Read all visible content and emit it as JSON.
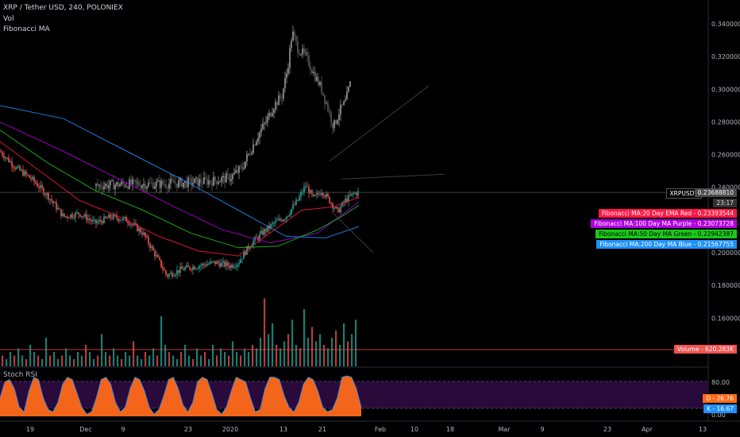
{
  "header": {
    "symbol_line": "XRP / Tether USD, 240, POLONIEX",
    "indicator_vol": "Vol",
    "indicator_fib": "Fibonacci MA",
    "indicator_stoch": "Stoch RSI"
  },
  "price_axis": {
    "ticks": [
      "0.34000000",
      "0.32000000",
      "0.30000000",
      "0.28000000",
      "0.26000000",
      "0.24000000",
      "0.20000000",
      "0.18000000",
      "0.16000000"
    ]
  },
  "stoch_axis": {
    "ticks": [
      "80.00",
      "0.00"
    ]
  },
  "time_axis": {
    "ticks": [
      "19",
      "Dec",
      "9",
      "23",
      "2020",
      "13",
      "21",
      "Feb",
      "10",
      "18",
      "Mar",
      "9",
      "23",
      "Apr",
      "13"
    ]
  },
  "tags": {
    "symbol": "XRPUSDT",
    "last_price": "0.23688810",
    "countdown": "23:17",
    "ma20": "Fibonacci MA:20 Day EMA Red - 0.23393544",
    "ma100": "Fibonacci MA:100 Day MA Purple - 0.23073728",
    "ma50": "Fibonacci MA:50 Day MA Green - 0.22942387",
    "ma200": "Fibonacci MA:200 Day MA Blue - 0.21567755",
    "volume": "Volume - 620.283K",
    "stoch_d": "D - 26.76",
    "stoch_k": "K - 16.67"
  },
  "colors": {
    "background": "#000000",
    "up": "#26a69a",
    "down": "#ef5350",
    "ema20": "#ff1744",
    "ma100": "#b000e0",
    "ma50": "#19c819",
    "ma200": "#1e90ff",
    "stoch_fill": "#ff6a1a",
    "stoch_band": "#2a0a3a",
    "last_price_tag": "#4a4a4a"
  },
  "chart_data": {
    "type": "candlestick",
    "symbol": "XRP / Tether USD",
    "interval": "240",
    "exchange": "POLONIEX",
    "price_range": [
      0.14,
      0.35
    ],
    "stoch_range": [
      0,
      100
    ],
    "main_path": [
      [
        0,
        0.262
      ],
      [
        20,
        0.252
      ],
      [
        40,
        0.245
      ],
      [
        60,
        0.235
      ],
      [
        80,
        0.222
      ],
      [
        100,
        0.224
      ],
      [
        120,
        0.218
      ],
      [
        140,
        0.222
      ],
      [
        160,
        0.22
      ],
      [
        180,
        0.212
      ],
      [
        200,
        0.195
      ],
      [
        210,
        0.186
      ],
      [
        230,
        0.19
      ],
      [
        250,
        0.192
      ],
      [
        270,
        0.194
      ],
      [
        290,
        0.192
      ],
      [
        300,
        0.194
      ],
      [
        315,
        0.205
      ],
      [
        330,
        0.212
      ],
      [
        345,
        0.218
      ],
      [
        360,
        0.222
      ],
      [
        375,
        0.232
      ],
      [
        385,
        0.241
      ],
      [
        395,
        0.233
      ],
      [
        405,
        0.238
      ],
      [
        415,
        0.232
      ],
      [
        425,
        0.225
      ],
      [
        435,
        0.232
      ],
      [
        445,
        0.236
      ],
      [
        452,
        0.237
      ]
    ],
    "overlay_path": [
      [
        120,
        0.241
      ],
      [
        160,
        0.242
      ],
      [
        200,
        0.242
      ],
      [
        240,
        0.243
      ],
      [
        270,
        0.244
      ],
      [
        290,
        0.246
      ],
      [
        305,
        0.252
      ],
      [
        315,
        0.262
      ],
      [
        325,
        0.272
      ],
      [
        335,
        0.28
      ],
      [
        345,
        0.29
      ],
      [
        355,
        0.296
      ],
      [
        362,
        0.312
      ],
      [
        368,
        0.335
      ],
      [
        375,
        0.325
      ],
      [
        385,
        0.32
      ],
      [
        395,
        0.31
      ],
      [
        405,
        0.3
      ],
      [
        412,
        0.29
      ],
      [
        420,
        0.277
      ],
      [
        428,
        0.287
      ],
      [
        435,
        0.292
      ],
      [
        442,
        0.305
      ]
    ],
    "ema20": [
      [
        0,
        0.268
      ],
      [
        50,
        0.25
      ],
      [
        100,
        0.232
      ],
      [
        150,
        0.222
      ],
      [
        200,
        0.21
      ],
      [
        250,
        0.201
      ],
      [
        300,
        0.198
      ],
      [
        340,
        0.212
      ],
      [
        380,
        0.226
      ],
      [
        420,
        0.228
      ],
      [
        452,
        0.234
      ]
    ],
    "ma50": [
      [
        0,
        0.275
      ],
      [
        60,
        0.255
      ],
      [
        120,
        0.238
      ],
      [
        180,
        0.226
      ],
      [
        240,
        0.212
      ],
      [
        300,
        0.203
      ],
      [
        350,
        0.204
      ],
      [
        400,
        0.214
      ],
      [
        430,
        0.222
      ],
      [
        452,
        0.229
      ]
    ],
    "ma100": [
      [
        0,
        0.28
      ],
      [
        80,
        0.262
      ],
      [
        150,
        0.245
      ],
      [
        220,
        0.228
      ],
      [
        280,
        0.214
      ],
      [
        340,
        0.206
      ],
      [
        400,
        0.212
      ],
      [
        452,
        0.231
      ]
    ],
    "ma200": [
      [
        0,
        0.29
      ],
      [
        80,
        0.282
      ],
      [
        160,
        0.262
      ],
      [
        240,
        0.242
      ],
      [
        300,
        0.226
      ],
      [
        360,
        0.21
      ],
      [
        410,
        0.209
      ],
      [
        452,
        0.216
      ]
    ],
    "volume_values": [
      0.3,
      0.2,
      0.4,
      0.3,
      0.5,
      0.3,
      0.2,
      0.6,
      0.4,
      0.3,
      0.2,
      0.8,
      0.3,
      0.4,
      0.2,
      0.3,
      0.5,
      0.3,
      0.2,
      0.4,
      0.3,
      0.6,
      0.4,
      0.2,
      0.3,
      0.9,
      0.4,
      0.3,
      0.5,
      0.3,
      0.2,
      0.4,
      0.3,
      0.7,
      0.3,
      0.2,
      0.4,
      0.3,
      0.5,
      0.3,
      1.4,
      0.6,
      0.4,
      0.3,
      0.2,
      0.4,
      0.6,
      0.3,
      0.2,
      0.5,
      0.3,
      0.4,
      0.2,
      0.6,
      0.3,
      0.5,
      0.4,
      0.3,
      0.7,
      0.4,
      0.3,
      0.5,
      0.4,
      0.6,
      0.5,
      0.8,
      1.9,
      0.9,
      1.2,
      0.6,
      0.5,
      0.7,
      0.9,
      1.3,
      0.6,
      0.5,
      1.6,
      0.8,
      1.1,
      0.7,
      0.9,
      0.6,
      0.5,
      0.8,
      1.0,
      0.6,
      1.2,
      0.7,
      0.9,
      1.3
    ],
    "stoch_k": [
      40,
      75,
      80,
      60,
      20,
      10,
      55,
      85,
      80,
      40,
      15,
      10,
      30,
      70,
      85,
      80,
      50,
      20,
      5,
      10,
      40,
      80,
      85,
      70,
      30,
      10,
      20,
      60,
      85,
      80,
      55,
      20,
      5,
      15,
      45,
      80,
      85,
      60,
      25,
      10,
      30,
      75,
      85,
      80,
      50,
      15,
      5,
      20,
      55,
      85,
      80,
      75,
      40,
      10,
      15,
      60,
      85,
      85,
      80,
      45,
      20,
      10,
      30,
      70,
      85,
      80,
      55,
      20,
      10,
      15,
      40,
      85,
      88,
      85,
      60,
      20
    ],
    "y_ticks_price": [
      0.34,
      0.32,
      0.3,
      0.28,
      0.26,
      0.24,
      0.2,
      0.18,
      0.16
    ],
    "y_ticks_stoch": [
      80,
      0
    ],
    "x_tick_labels": [
      "19",
      "Dec",
      "9",
      "23",
      "2020",
      "13",
      "21",
      "Feb",
      "10",
      "18",
      "Mar",
      "9",
      "23",
      "Apr",
      "13"
    ],
    "last_price": 0.2368881,
    "volume_last": "620.283K",
    "stoch_d_last": 26.76,
    "stoch_k_last": 16.67,
    "ma_values": {
      "ema20": 0.23393544,
      "ma100": 0.23073728,
      "ma50": 0.22942387,
      "ma200": 0.21567755
    },
    "grid": false
  }
}
